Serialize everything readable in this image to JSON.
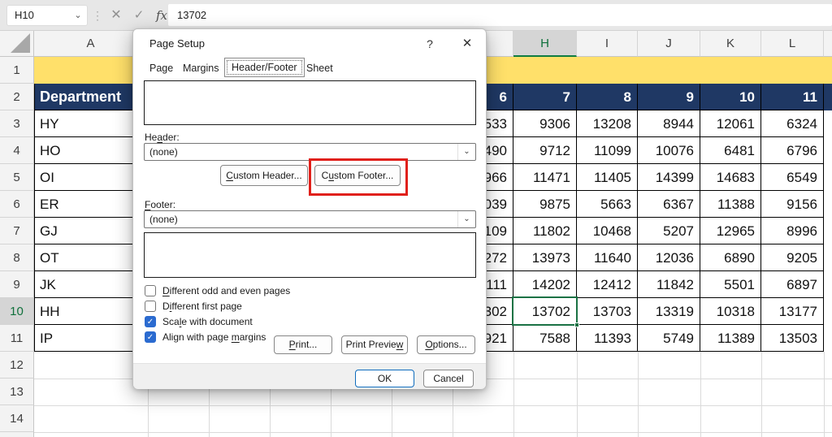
{
  "topbar": {
    "name_box": "H10",
    "formula_value": "13702"
  },
  "sheet": {
    "col_letters": {
      "a": "A",
      "h": "H",
      "i": "I",
      "j": "J",
      "k": "K",
      "l": "L"
    },
    "row_numbers": [
      "1",
      "2",
      "3",
      "4",
      "5",
      "6",
      "7",
      "8",
      "9",
      "10",
      "11",
      "12",
      "13",
      "14"
    ],
    "header_row": {
      "a": "Department",
      "g": "6",
      "h": "7",
      "i": "8",
      "j": "9",
      "k": "10",
      "l": "11"
    },
    "rows": [
      {
        "a": "HY",
        "g": "533",
        "h": "9306",
        "i": "13208",
        "j": "8944",
        "k": "12061",
        "l": "6324"
      },
      {
        "a": "HO",
        "g": "490",
        "h": "9712",
        "i": "11099",
        "j": "10076",
        "k": "6481",
        "l": "6796"
      },
      {
        "a": "OI",
        "g": "966",
        "h": "11471",
        "i": "11405",
        "j": "14399",
        "k": "14683",
        "l": "6549"
      },
      {
        "a": "ER",
        "g": "039",
        "h": "9875",
        "i": "5663",
        "j": "6367",
        "k": "11388",
        "l": "9156"
      },
      {
        "a": "GJ",
        "g": "109",
        "h": "11802",
        "i": "10468",
        "j": "5207",
        "k": "12965",
        "l": "8996"
      },
      {
        "a": "OT",
        "g": "272",
        "h": "13973",
        "i": "11640",
        "j": "12036",
        "k": "6890",
        "l": "9205"
      },
      {
        "a": "JK",
        "g": "111",
        "h": "14202",
        "i": "12412",
        "j": "11842",
        "k": "5501",
        "l": "6897"
      },
      {
        "a": "HH",
        "g": "302",
        "h": "13702",
        "i": "13703",
        "j": "13319",
        "k": "10318",
        "l": "13177"
      },
      {
        "a": "IP",
        "g": "921",
        "h": "7588",
        "i": "11393",
        "j": "5749",
        "k": "11389",
        "l": "13503"
      }
    ],
    "active_cell": "H10"
  },
  "dialog": {
    "title": "Page Setup",
    "help_icon": "?",
    "close_icon": "✕",
    "tabs": [
      {
        "label": "Page"
      },
      {
        "label": "Margins"
      },
      {
        "label": "Header/Footer"
      },
      {
        "label": "Sheet"
      }
    ],
    "selected_tab": "Header/Footer",
    "header_label": "He<u>a</u>der:",
    "header_value": "(none)",
    "custom_header_button": "<u>C</u>ustom Header...",
    "custom_footer_button": "C<u>u</u>stom Footer...",
    "footer_label": "<u>F</u>ooter:",
    "footer_value": "(none)",
    "checkboxes": [
      {
        "label": "<u>D</u>ifferent odd and even pages",
        "checked": false
      },
      {
        "label": "D<u>i</u>fferent first page",
        "checked": false
      },
      {
        "label": "Sca<u>l</u>e with document",
        "checked": true
      },
      {
        "label": "Align with page <u>m</u>argins",
        "checked": true
      }
    ],
    "print_button": "<u>P</u>rint...",
    "print_preview_button": "Print Previe<u>w</u>",
    "options_button": "<u>O</u>ptions...",
    "ok_button": "OK",
    "cancel_button": "Cancel"
  },
  "colors": {
    "row1_fill": "#ffe06a",
    "row2_fill": "#1f3864",
    "selection_green": "#107c41",
    "highlight_red": "#e0201a",
    "checkbox_blue": "#2b6bd0"
  }
}
